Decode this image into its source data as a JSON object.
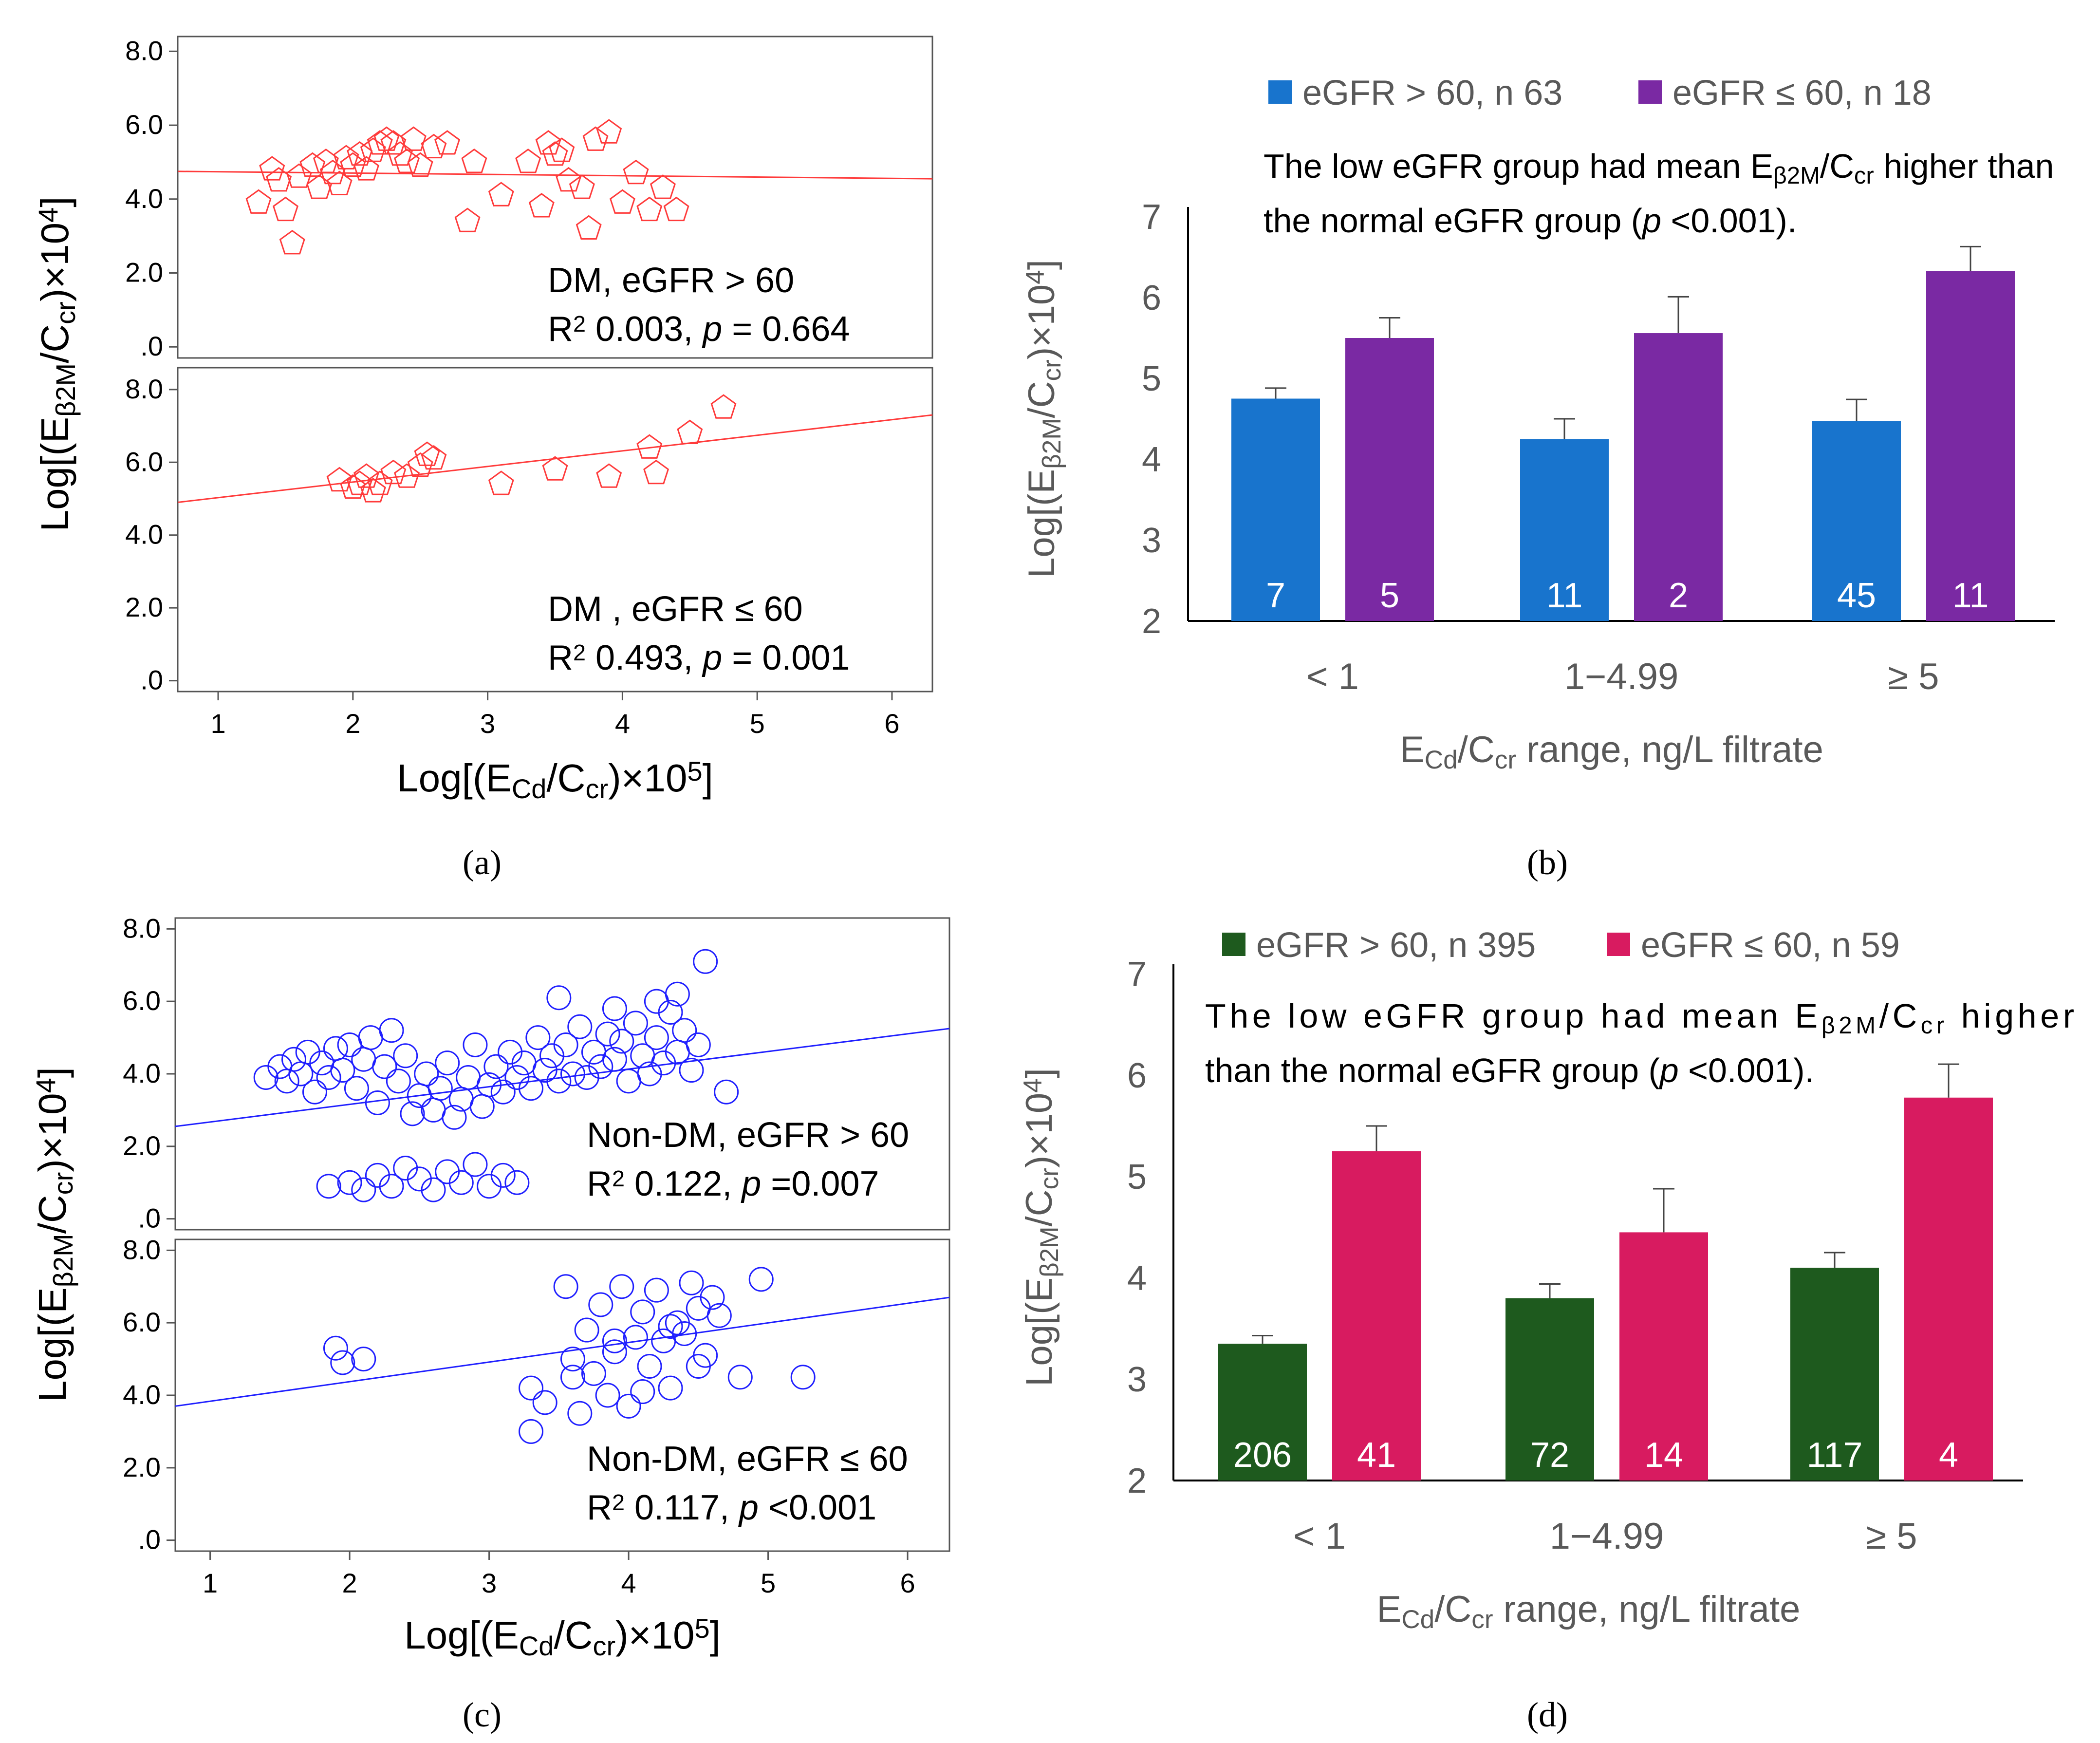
{
  "colors": {
    "red": "#ff3b3b",
    "blue": "#1f1fff",
    "bar_blue": "#1874cd",
    "bar_purple": "#7a29a3",
    "bar_green": "#1e5a1e",
    "bar_pink": "#d81b60",
    "axis_text": "#595959",
    "text": "#000000"
  },
  "panel_labels": {
    "a": "(a)",
    "b": "(b)",
    "c": "(c)",
    "d": "(d)"
  },
  "chart_data": [
    {
      "id": "a",
      "type": "scatter",
      "xlabel": "Log[(ECd/Ccr)×10⁵]",
      "ylabel": "Log[(Eβ2M/Ccr)×10⁴]",
      "x_ticks": [
        "1",
        "2",
        "3",
        "4",
        "5",
        "6"
      ],
      "y_ticks": [
        ".0",
        "2.0",
        "4.0",
        "6.0",
        "8.0"
      ],
      "xlim": [
        0.7,
        6.3
      ],
      "marker": "pentagon",
      "subplots": [
        {
          "name": "DM, eGFR > 60",
          "stat_r2": "0.003",
          "stat_p": "= 0.664",
          "ylim": [
            -0.3,
            8.4
          ],
          "fit": [
            [
              0.7,
              4.75
            ],
            [
              6.3,
              4.55
            ]
          ],
          "points": [
            [
              1.3,
              3.9
            ],
            [
              1.4,
              4.8
            ],
            [
              1.45,
              4.5
            ],
            [
              1.5,
              3.7
            ],
            [
              1.55,
              2.8
            ],
            [
              1.6,
              4.6
            ],
            [
              1.7,
              4.9
            ],
            [
              1.75,
              4.3
            ],
            [
              1.8,
              5.0
            ],
            [
              1.85,
              4.7
            ],
            [
              1.9,
              4.4
            ],
            [
              1.95,
              5.1
            ],
            [
              2.0,
              4.9
            ],
            [
              2.05,
              5.2
            ],
            [
              2.1,
              4.8
            ],
            [
              2.15,
              5.3
            ],
            [
              2.2,
              5.5
            ],
            [
              2.25,
              5.6
            ],
            [
              2.3,
              5.5
            ],
            [
              2.35,
              5.2
            ],
            [
              2.4,
              5.0
            ],
            [
              2.45,
              5.6
            ],
            [
              2.5,
              4.9
            ],
            [
              2.6,
              5.4
            ],
            [
              2.7,
              5.5
            ],
            [
              2.85,
              3.4
            ],
            [
              2.9,
              5.0
            ],
            [
              3.1,
              4.1
            ],
            [
              3.3,
              5.0
            ],
            [
              3.4,
              3.8
            ],
            [
              3.45,
              5.5
            ],
            [
              3.5,
              5.2
            ],
            [
              3.55,
              5.3
            ],
            [
              3.6,
              4.5
            ],
            [
              3.7,
              4.3
            ],
            [
              3.75,
              3.2
            ],
            [
              3.8,
              5.6
            ],
            [
              3.9,
              5.8
            ],
            [
              4.0,
              3.9
            ],
            [
              4.1,
              4.7
            ],
            [
              4.2,
              3.7
            ],
            [
              4.3,
              4.3
            ],
            [
              4.4,
              3.7
            ]
          ]
        },
        {
          "name": "DM , eGFR ≤ 60",
          "stat_r2": "0.493",
          "stat_p": "= 0.001",
          "ylim": [
            -0.3,
            8.6
          ],
          "fit": [
            [
              0.7,
              4.9
            ],
            [
              6.3,
              7.3
            ]
          ],
          "points": [
            [
              1.9,
              5.5
            ],
            [
              2.0,
              5.3
            ],
            [
              2.05,
              5.4
            ],
            [
              2.1,
              5.6
            ],
            [
              2.15,
              5.2
            ],
            [
              2.2,
              5.4
            ],
            [
              2.3,
              5.7
            ],
            [
              2.4,
              5.6
            ],
            [
              2.5,
              5.9
            ],
            [
              2.55,
              6.2
            ],
            [
              2.6,
              6.1
            ],
            [
              3.1,
              5.4
            ],
            [
              3.5,
              5.8
            ],
            [
              3.9,
              5.6
            ],
            [
              4.2,
              6.4
            ],
            [
              4.25,
              5.7
            ],
            [
              4.5,
              6.8
            ],
            [
              4.75,
              7.5
            ]
          ]
        }
      ]
    },
    {
      "id": "b",
      "type": "bar",
      "legend": [
        {
          "name": "eGFR > 60, n 63",
          "color": "#1874cd"
        },
        {
          "name": "eGFR ≤ 60, n 18",
          "color": "#7a29a3"
        }
      ],
      "annotation_line1": "The low eGFR group had mean Eβ2M/Ccr higher than",
      "annotation_line2": "the normal eGFR group (p <0.001).",
      "categories": [
        "< 1",
        "1−4.99",
        "≥ 5"
      ],
      "series": [
        {
          "name": "eGFR > 60",
          "values": [
            4.75,
            4.25,
            4.47
          ],
          "errors": [
            0.13,
            0.25,
            0.27
          ],
          "n": [
            "7",
            "11",
            "45"
          ]
        },
        {
          "name": "eGFR ≤ 60",
          "values": [
            5.5,
            5.56,
            6.33
          ],
          "errors": [
            0.25,
            0.45,
            0.3
          ],
          "n": [
            "5",
            "2",
            "11"
          ]
        }
      ],
      "y_ticks": [
        "2",
        "3",
        "4",
        "5",
        "6",
        "7"
      ],
      "ylim": [
        2,
        7
      ],
      "xlabel": "ECd/Ccr range, ng/L filtrate",
      "ylabel": "Log[(Eβ2M/Ccr)×10⁴]"
    },
    {
      "id": "c",
      "type": "scatter",
      "xlabel": "Log[(ECd/Ccr)×10⁵]",
      "ylabel": "Log[(Eβ2M/Ccr)×10⁴]",
      "x_ticks": [
        "1",
        "2",
        "3",
        "4",
        "5",
        "6"
      ],
      "y_ticks": [
        ".0",
        "2.0",
        "4.0",
        "6.0",
        "8.0"
      ],
      "xlim": [
        0.75,
        6.3
      ],
      "marker": "circle",
      "subplots": [
        {
          "name": "Non-DM, eGFR > 60",
          "stat_r2": "0.122",
          "stat_p": "=0.007",
          "ylim": [
            -0.3,
            8.3
          ],
          "fit": [
            [
              0.75,
              2.55
            ],
            [
              6.3,
              5.25
            ]
          ],
          "points": [
            [
              1.4,
              3.9
            ],
            [
              1.5,
              4.2
            ],
            [
              1.55,
              3.8
            ],
            [
              1.6,
              4.4
            ],
            [
              1.65,
              4.0
            ],
            [
              1.7,
              4.6
            ],
            [
              1.75,
              3.5
            ],
            [
              1.8,
              4.3
            ],
            [
              1.85,
              3.9
            ],
            [
              1.9,
              4.7
            ],
            [
              1.95,
              4.1
            ],
            [
              2.0,
              4.8
            ],
            [
              2.05,
              3.6
            ],
            [
              2.1,
              4.4
            ],
            [
              2.15,
              5.0
            ],
            [
              2.2,
              3.2
            ],
            [
              2.25,
              4.2
            ],
            [
              2.3,
              5.2
            ],
            [
              2.35,
              3.8
            ],
            [
              2.4,
              4.5
            ],
            [
              2.45,
              2.9
            ],
            [
              2.5,
              3.4
            ],
            [
              2.55,
              4.0
            ],
            [
              2.6,
              3.0
            ],
            [
              2.65,
              3.6
            ],
            [
              2.7,
              4.3
            ],
            [
              2.75,
              2.8
            ],
            [
              2.8,
              3.3
            ],
            [
              2.85,
              3.9
            ],
            [
              2.9,
              4.8
            ],
            [
              2.95,
              3.1
            ],
            [
              3.0,
              3.7
            ],
            [
              3.05,
              4.2
            ],
            [
              3.1,
              3.5
            ],
            [
              3.15,
              4.6
            ],
            [
              3.2,
              3.9
            ],
            [
              3.25,
              4.3
            ],
            [
              3.3,
              3.6
            ],
            [
              3.35,
              5.0
            ],
            [
              3.4,
              4.1
            ],
            [
              3.45,
              4.5
            ],
            [
              3.5,
              3.8
            ],
            [
              3.55,
              4.8
            ],
            [
              3.6,
              4.0
            ],
            [
              3.65,
              5.3
            ],
            [
              3.7,
              3.9
            ],
            [
              3.75,
              4.6
            ],
            [
              3.8,
              4.2
            ],
            [
              3.85,
              5.1
            ],
            [
              3.9,
              4.4
            ],
            [
              3.95,
              4.9
            ],
            [
              4.0,
              3.8
            ],
            [
              4.05,
              5.4
            ],
            [
              4.1,
              4.5
            ],
            [
              4.15,
              4.0
            ],
            [
              4.2,
              5.0
            ],
            [
              4.25,
              4.3
            ],
            [
              4.3,
              5.7
            ],
            [
              4.35,
              4.6
            ],
            [
              4.4,
              5.2
            ],
            [
              4.45,
              4.1
            ],
            [
              4.5,
              4.8
            ],
            [
              4.55,
              7.1
            ],
            [
              4.7,
              3.5
            ],
            [
              3.5,
              6.1
            ],
            [
              3.9,
              5.8
            ],
            [
              4.2,
              6.0
            ],
            [
              4.35,
              6.2
            ],
            [
              1.85,
              0.9
            ],
            [
              2.0,
              1.0
            ],
            [
              2.1,
              0.8
            ],
            [
              2.2,
              1.2
            ],
            [
              2.3,
              0.9
            ],
            [
              2.4,
              1.4
            ],
            [
              2.5,
              1.1
            ],
            [
              2.6,
              0.8
            ],
            [
              2.7,
              1.3
            ],
            [
              2.8,
              1.0
            ],
            [
              2.9,
              1.5
            ],
            [
              3.0,
              0.9
            ],
            [
              3.1,
              1.2
            ],
            [
              3.2,
              1.0
            ]
          ]
        },
        {
          "name": "Non-DM, eGFR ≤ 60",
          "stat_r2": "0.117",
          "stat_p": "<0.001",
          "ylim": [
            -0.3,
            8.3
          ],
          "fit": [
            [
              0.75,
              3.7
            ],
            [
              6.3,
              6.7
            ]
          ],
          "points": [
            [
              1.9,
              5.3
            ],
            [
              1.95,
              4.9
            ],
            [
              2.1,
              5.0
            ],
            [
              3.3,
              4.2
            ],
            [
              3.3,
              3.0
            ],
            [
              3.4,
              3.8
            ],
            [
              3.55,
              7.0
            ],
            [
              3.6,
              5.0
            ],
            [
              3.6,
              4.5
            ],
            [
              3.65,
              3.5
            ],
            [
              3.7,
              5.8
            ],
            [
              3.75,
              4.6
            ],
            [
              3.8,
              6.5
            ],
            [
              3.85,
              4.0
            ],
            [
              3.9,
              5.2
            ],
            [
              3.95,
              7.0
            ],
            [
              4.0,
              3.7
            ],
            [
              4.05,
              5.6
            ],
            [
              4.1,
              6.3
            ],
            [
              4.15,
              4.8
            ],
            [
              4.2,
              6.9
            ],
            [
              4.25,
              5.5
            ],
            [
              4.3,
              4.2
            ],
            [
              4.35,
              6.0
            ],
            [
              4.4,
              5.7
            ],
            [
              4.45,
              7.1
            ],
            [
              4.5,
              6.4
            ],
            [
              4.55,
              5.1
            ],
            [
              4.6,
              6.7
            ],
            [
              4.65,
              6.2
            ],
            [
              4.8,
              4.5
            ],
            [
              4.95,
              7.2
            ],
            [
              5.25,
              4.5
            ],
            [
              4.5,
              4.8
            ],
            [
              4.1,
              4.1
            ],
            [
              3.9,
              5.5
            ],
            [
              4.3,
              5.9
            ]
          ]
        }
      ]
    },
    {
      "id": "d",
      "type": "bar",
      "legend": [
        {
          "name": "eGFR > 60, n 395",
          "color": "#1e5a1e"
        },
        {
          "name": "eGFR ≤ 60, n 59",
          "color": "#d81b60"
        }
      ],
      "annotation_line1": "The low eGFR group had mean Eβ2M/Ccr higher",
      "annotation_line2": "than the normal eGFR group (p <0.001).",
      "categories": [
        "< 1",
        "1−4.99",
        "≥ 5"
      ],
      "series": [
        {
          "name": "eGFR > 60",
          "values": [
            3.35,
            3.8,
            4.1
          ],
          "errors": [
            0.08,
            0.14,
            0.15
          ],
          "n": [
            "206",
            "72",
            "117"
          ]
        },
        {
          "name": "eGFR ≤ 60",
          "values": [
            5.25,
            4.45,
            5.78
          ],
          "errors": [
            0.25,
            0.43,
            0.33
          ],
          "n": [
            "41",
            "14",
            "4"
          ]
        }
      ],
      "y_ticks": [
        "2",
        "3",
        "4",
        "5",
        "6",
        "7"
      ],
      "ylim": [
        2,
        7
      ],
      "xlabel": "ECd/Ccr range, ng/L filtrate",
      "ylabel": "Log[(Eβ2M/Ccr)×10⁴]"
    }
  ]
}
